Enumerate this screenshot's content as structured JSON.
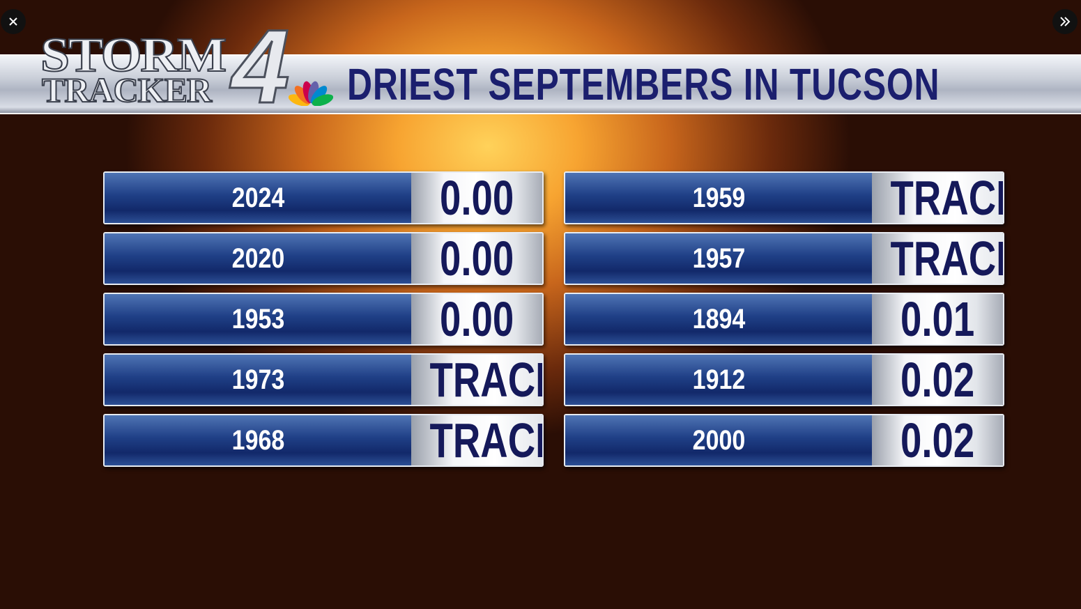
{
  "header": {
    "logo": {
      "line1": "STORM",
      "line2": "TRACKER",
      "number": "4"
    },
    "title": "DRIEST SEPTEMBERS IN TUCSON"
  },
  "table": {
    "columns": [
      {
        "rows": [
          {
            "year": "2024",
            "value": "0.00"
          },
          {
            "year": "2020",
            "value": "0.00"
          },
          {
            "year": "1953",
            "value": "0.00"
          },
          {
            "year": "1973",
            "value": "TRACE"
          },
          {
            "year": "1968",
            "value": "TRACE"
          }
        ]
      },
      {
        "rows": [
          {
            "year": "1959",
            "value": "TRACE"
          },
          {
            "year": "1957",
            "value": "TRACE"
          },
          {
            "year": "1894",
            "value": "0.01"
          },
          {
            "year": "1912",
            "value": "0.02"
          },
          {
            "year": "2000",
            "value": "0.02"
          }
        ]
      }
    ]
  }
}
